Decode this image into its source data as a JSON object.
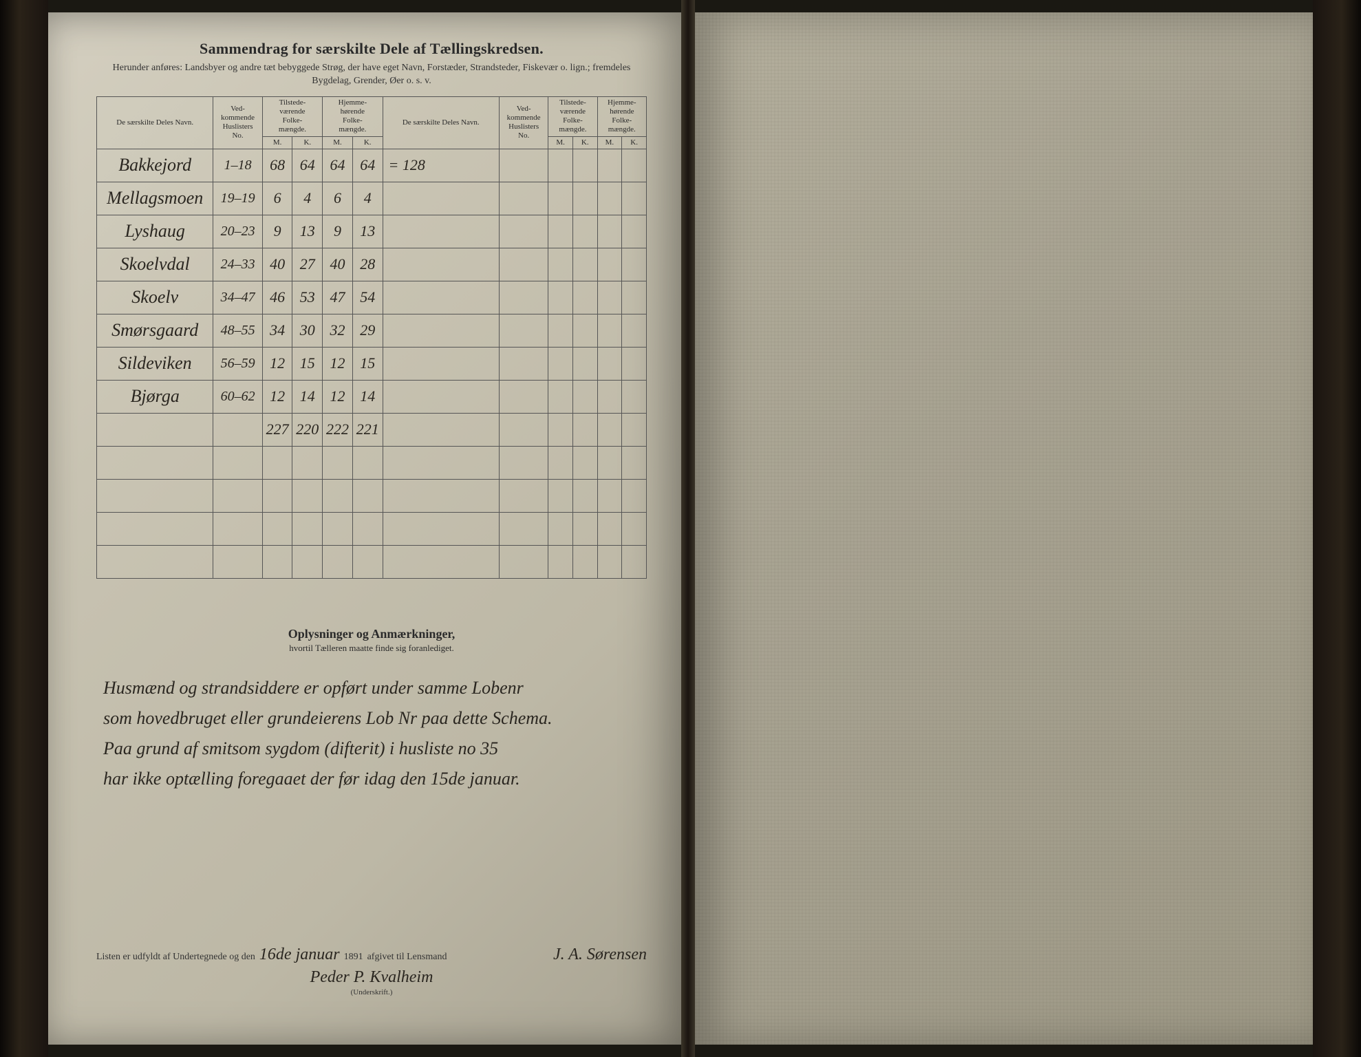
{
  "header": {
    "title": "Sammendrag for særskilte Dele af Tællingskredsen.",
    "subtitle": "Herunder anføres: Landsbyer og andre tæt bebyggede Strøg, der have eget Navn, Forstæder, Strandsteder, Fiskevær o. lign.; fremdeles Bygdelag, Grender, Øer o. s. v."
  },
  "columns": {
    "name": "De særskilte Deles Navn.",
    "huslister": "Ved-\nkommende\nHuslisters\nNo.",
    "tilstede": "Tilstede-\nværende\nFolke-\nmængde.",
    "hjemme": "Hjemme-\nhørende\nFolke-\nmængde.",
    "m": "M.",
    "k": "K."
  },
  "rows": [
    {
      "name": "Bakkejord",
      "hus": "1–18",
      "tm": "68",
      "tk": "64",
      "hm": "64",
      "hk": "64",
      "note": "= 128"
    },
    {
      "name": "Mellagsmoen",
      "hus": "19–19",
      "tm": "6",
      "tk": "4",
      "hm": "6",
      "hk": "4",
      "note": ""
    },
    {
      "name": "Lyshaug",
      "hus": "20–23",
      "tm": "9",
      "tk": "13",
      "hm": "9",
      "hk": "13",
      "note": ""
    },
    {
      "name": "Skoelvdal",
      "hus": "24–33",
      "tm": "40",
      "tk": "27",
      "hm": "40",
      "hk": "28",
      "note": ""
    },
    {
      "name": "Skoelv",
      "hus": "34–47",
      "tm": "46",
      "tk": "53",
      "hm": "47",
      "hk": "54",
      "note": ""
    },
    {
      "name": "Smørsgaard",
      "hus": "48–55",
      "tm": "34",
      "tk": "30",
      "hm": "32",
      "hk": "29",
      "note": ""
    },
    {
      "name": "Sildeviken",
      "hus": "56–59",
      "tm": "12",
      "tk": "15",
      "hm": "12",
      "hk": "15",
      "note": ""
    },
    {
      "name": "Bjørga",
      "hus": "60–62",
      "tm": "12",
      "tk": "14",
      "hm": "12",
      "hk": "14",
      "note": ""
    }
  ],
  "totals": {
    "tm": "227",
    "tk": "220",
    "hm": "222",
    "hk": "221"
  },
  "blank_rows": 4,
  "remarks": {
    "title": "Oplysninger og Anmærkninger,",
    "subtitle": "hvortil Tælleren maatte finde sig foranlediget.",
    "lines": [
      "Husmænd og strandsiddere er opført under samme Lobenr",
      "som hovedbruget eller grundeierens Lob Nr paa dette Schema.",
      "Paa grund af smitsom sygdom (difterit) i husliste no 35",
      "har ikke optælling foregaaet der før idag den 15de januar."
    ]
  },
  "footer": {
    "prefix": "Listen er udfyldt af Undertegnede og den",
    "date_day": "16de",
    "date_month": "januar",
    "year": "1891",
    "mid": "afgivet til Lensmand",
    "sig1": "J. A. Sørensen",
    "sig2": "Peder P. Kvalheim",
    "caption": "(Underskrift.)"
  },
  "style": {
    "ink": "#2a2620",
    "rule": "#555555",
    "page_left_bg": "#c8c3b2",
    "page_right_bg": "#a8a392"
  }
}
